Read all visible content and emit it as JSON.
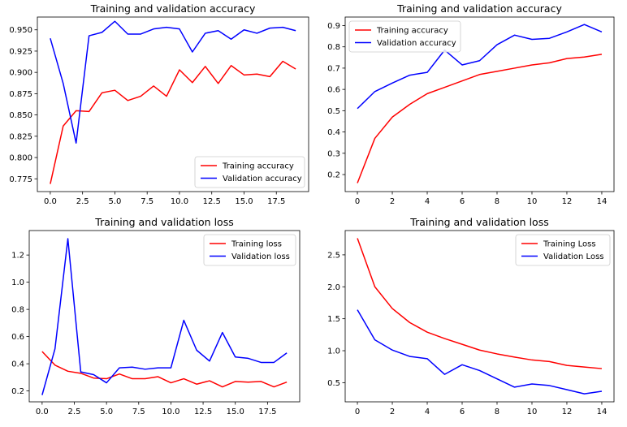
{
  "chart_data": [
    {
      "type": "line",
      "title": "Training and validation accuracy",
      "xlim": [
        -1,
        20
      ],
      "ylim": [
        0.76,
        0.965
      ],
      "xticks": [
        0.0,
        2.5,
        5.0,
        7.5,
        10.0,
        12.5,
        15.0,
        17.5
      ],
      "xtick_labels": [
        "0.0",
        "2.5",
        "5.0",
        "7.5",
        "10.0",
        "12.5",
        "15.0",
        "17.5"
      ],
      "yticks": [
        0.775,
        0.8,
        0.825,
        0.85,
        0.875,
        0.9,
        0.925,
        0.95
      ],
      "ytick_labels": [
        "0.775",
        "0.800",
        "0.825",
        "0.850",
        "0.875",
        "0.900",
        "0.925",
        "0.950"
      ],
      "legend_position": "lower-right",
      "grid": false,
      "series": [
        {
          "name": "Training accuracy",
          "color": "#ff0000",
          "x": [
            0,
            1,
            2,
            3,
            4,
            5,
            6,
            7,
            8,
            9,
            10,
            11,
            12,
            13,
            14,
            15,
            16,
            17,
            18,
            19
          ],
          "values": [
            0.769,
            0.837,
            0.855,
            0.854,
            0.876,
            0.879,
            0.867,
            0.872,
            0.884,
            0.872,
            0.903,
            0.888,
            0.907,
            0.887,
            0.908,
            0.897,
            0.898,
            0.895,
            0.913,
            0.904
          ]
        },
        {
          "name": "Validation accuracy",
          "color": "#0000ff",
          "x": [
            0,
            1,
            2,
            3,
            4,
            5,
            6,
            7,
            8,
            9,
            10,
            11,
            12,
            13,
            14,
            15,
            16,
            17,
            18,
            19
          ],
          "values": [
            0.94,
            0.887,
            0.817,
            0.943,
            0.947,
            0.96,
            0.945,
            0.945,
            0.951,
            0.953,
            0.951,
            0.924,
            0.946,
            0.949,
            0.939,
            0.95,
            0.946,
            0.952,
            0.953,
            0.949
          ]
        }
      ]
    },
    {
      "type": "line",
      "title": "Training and validation accuracy",
      "xlim": [
        -0.7,
        14.7
      ],
      "ylim": [
        0.12,
        0.94
      ],
      "xticks": [
        0,
        2,
        4,
        6,
        8,
        10,
        12,
        14
      ],
      "xtick_labels": [
        "0",
        "2",
        "4",
        "6",
        "8",
        "10",
        "12",
        "14"
      ],
      "yticks": [
        0.2,
        0.3,
        0.4,
        0.5,
        0.6,
        0.7,
        0.8,
        0.9
      ],
      "ytick_labels": [
        "0.2",
        "0.3",
        "0.4",
        "0.5",
        "0.6",
        "0.7",
        "0.8",
        "0.9"
      ],
      "legend_position": "upper-left",
      "grid": false,
      "series": [
        {
          "name": "Training accuracy",
          "color": "#ff0000",
          "x": [
            0,
            1,
            2,
            3,
            4,
            5,
            6,
            7,
            8,
            9,
            10,
            11,
            12,
            13,
            14
          ],
          "values": [
            0.16,
            0.37,
            0.47,
            0.53,
            0.58,
            0.61,
            0.64,
            0.67,
            0.685,
            0.7,
            0.715,
            0.725,
            0.745,
            0.752,
            0.765
          ]
        },
        {
          "name": "Validation accuracy",
          "color": "#0000ff",
          "x": [
            0,
            1,
            2,
            3,
            4,
            5,
            6,
            7,
            8,
            9,
            10,
            11,
            12,
            13,
            14
          ],
          "values": [
            0.51,
            0.59,
            0.63,
            0.667,
            0.68,
            0.785,
            0.715,
            0.735,
            0.81,
            0.855,
            0.835,
            0.84,
            0.87,
            0.905,
            0.87
          ]
        }
      ]
    },
    {
      "type": "line",
      "title": "Training and validation loss",
      "xlim": [
        -1,
        20
      ],
      "ylim": [
        0.12,
        1.38
      ],
      "xticks": [
        0.0,
        2.5,
        5.0,
        7.5,
        10.0,
        12.5,
        15.0,
        17.5
      ],
      "xtick_labels": [
        "0.0",
        "2.5",
        "5.0",
        "7.5",
        "10.0",
        "12.5",
        "15.0",
        "17.5"
      ],
      "yticks": [
        0.2,
        0.4,
        0.6,
        0.8,
        1.0,
        1.2
      ],
      "ytick_labels": [
        "0.2",
        "0.4",
        "0.6",
        "0.8",
        "1.0",
        "1.2"
      ],
      "legend_position": "upper-right",
      "grid": false,
      "series": [
        {
          "name": "Training loss",
          "color": "#ff0000",
          "x": [
            0,
            1,
            2,
            3,
            4,
            5,
            6,
            7,
            8,
            9,
            10,
            11,
            12,
            13,
            14,
            15,
            16,
            17,
            18,
            19
          ],
          "values": [
            0.49,
            0.39,
            0.345,
            0.33,
            0.295,
            0.29,
            0.325,
            0.29,
            0.29,
            0.305,
            0.26,
            0.29,
            0.25,
            0.275,
            0.23,
            0.27,
            0.265,
            0.27,
            0.23,
            0.265
          ]
        },
        {
          "name": "Validation loss",
          "color": "#0000ff",
          "x": [
            0,
            1,
            2,
            3,
            4,
            5,
            6,
            7,
            8,
            9,
            10,
            11,
            12,
            13,
            14,
            15,
            16,
            17,
            18,
            19
          ],
          "values": [
            0.17,
            0.51,
            1.32,
            0.34,
            0.32,
            0.26,
            0.37,
            0.375,
            0.36,
            0.37,
            0.37,
            0.72,
            0.5,
            0.42,
            0.63,
            0.45,
            0.44,
            0.41,
            0.41,
            0.48
          ]
        }
      ]
    },
    {
      "type": "line",
      "title": "Training and validation loss",
      "xlim": [
        -0.7,
        14.7
      ],
      "ylim": [
        0.2,
        2.88
      ],
      "xticks": [
        0,
        2,
        4,
        6,
        8,
        10,
        12,
        14
      ],
      "xtick_labels": [
        "0",
        "2",
        "4",
        "6",
        "8",
        "10",
        "12",
        "14"
      ],
      "yticks": [
        0.5,
        1.0,
        1.5,
        2.0,
        2.5
      ],
      "ytick_labels": [
        "0.5",
        "1.0",
        "1.5",
        "2.0",
        "2.5"
      ],
      "legend_position": "upper-right",
      "grid": false,
      "series": [
        {
          "name": "Training Loss",
          "color": "#ff0000",
          "x": [
            0,
            1,
            2,
            3,
            4,
            5,
            6,
            7,
            8,
            9,
            10,
            11,
            12,
            13,
            14
          ],
          "values": [
            2.76,
            2.0,
            1.66,
            1.44,
            1.29,
            1.19,
            1.1,
            1.01,
            0.95,
            0.9,
            0.855,
            0.83,
            0.77,
            0.745,
            0.72
          ]
        },
        {
          "name": "Validation Loss",
          "color": "#0000ff",
          "x": [
            0,
            1,
            2,
            3,
            4,
            5,
            6,
            7,
            8,
            9,
            10,
            11,
            12,
            13,
            14
          ],
          "values": [
            1.64,
            1.17,
            1.01,
            0.91,
            0.875,
            0.63,
            0.78,
            0.69,
            0.56,
            0.43,
            0.48,
            0.455,
            0.39,
            0.325,
            0.365
          ]
        }
      ]
    }
  ]
}
